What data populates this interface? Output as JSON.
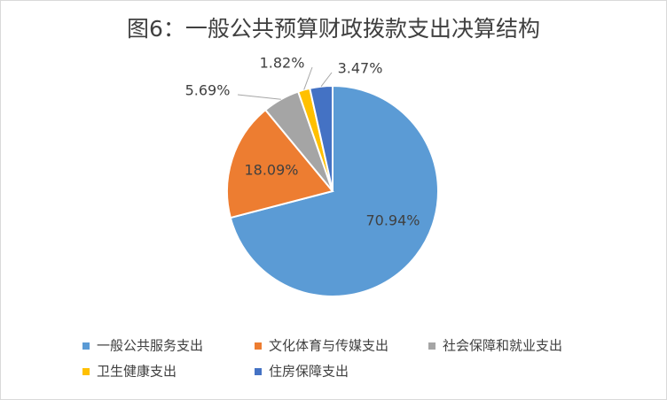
{
  "chart_data": {
    "type": "pie",
    "title": "图6：一般公共预算财政拨款支出决算结构",
    "categories": [
      "一般公共服务支出",
      "文化体育与传媒支出",
      "社会保障和就业支出",
      "卫生健康支出",
      "住房保障支出"
    ],
    "values": [
      70.94,
      18.09,
      5.69,
      1.82,
      3.47
    ],
    "value_labels": [
      "70.94%",
      "18.09%",
      "5.69%",
      "1.82%",
      "3.47%"
    ],
    "colors": [
      "#5b9bd5",
      "#ed7d31",
      "#a5a5a5",
      "#ffc000",
      "#4472c4"
    ],
    "legend": "bottom"
  }
}
